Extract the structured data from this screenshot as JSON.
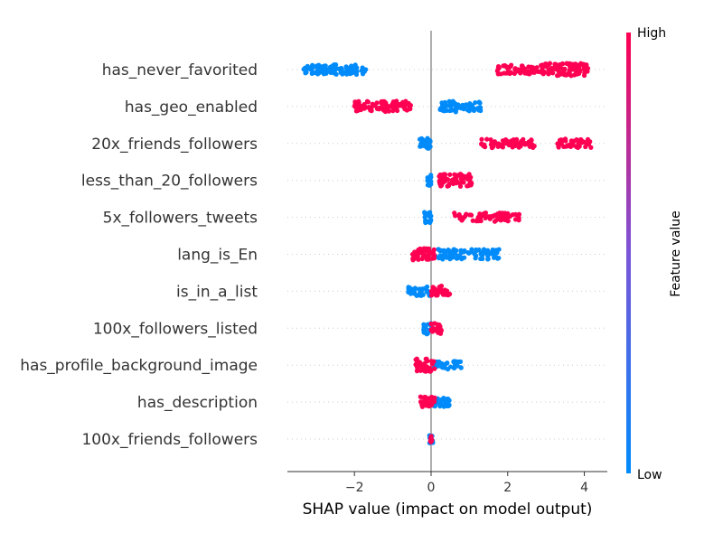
{
  "chart_data": {
    "type": "scatter",
    "subtype": "shap-beeswarm",
    "xlabel": "SHAP value (impact on model output)",
    "xlim": [
      -3.75,
      4.6
    ],
    "xticks": [
      -2,
      0,
      2,
      4
    ],
    "xtick_labels": [
      "−2",
      "0",
      "2",
      "4"
    ],
    "colorbar": {
      "label": "Feature value",
      "high_label": "High",
      "low_label": "Low",
      "high_color": "#ff0052",
      "low_color": "#008bfb"
    },
    "features": [
      {
        "name": "has_never_favorited",
        "low": [
          [
            -3.4,
            -2.7,
            0.6
          ],
          [
            -2.9,
            -1.7,
            0.7
          ]
        ],
        "high": [
          [
            1.7,
            2.9,
            0.6
          ],
          [
            2.9,
            4.1,
            1.0
          ]
        ]
      },
      {
        "name": "has_geo_enabled",
        "low": [
          [
            0.2,
            0.7,
            0.8
          ],
          [
            0.7,
            1.3,
            0.6
          ]
        ],
        "high": [
          [
            -2.0,
            -0.5,
            0.8
          ]
        ]
      },
      {
        "name": "20x_friends_followers",
        "low": [
          [
            -0.3,
            0.0,
            0.8
          ]
        ],
        "high": [
          [
            1.3,
            2.7,
            0.6
          ],
          [
            3.3,
            4.2,
            0.6
          ]
        ]
      },
      {
        "name": "less_than_20_followers",
        "low": [
          [
            -0.1,
            0.0,
            1.0
          ]
        ],
        "high": [
          [
            0.2,
            1.1,
            1.0
          ]
        ]
      },
      {
        "name": "5x_followers_tweets",
        "low": [
          [
            -0.2,
            0.0,
            0.8
          ]
        ],
        "high": [
          [
            0.6,
            2.3,
            0.6
          ]
        ]
      },
      {
        "name": "lang_is_En",
        "low": [
          [
            0.0,
            1.8,
            0.7
          ]
        ],
        "high": [
          [
            -0.5,
            0.1,
            0.9
          ]
        ]
      },
      {
        "name": "is_in_a_list",
        "low": [
          [
            -0.6,
            0.0,
            0.7
          ]
        ],
        "high": [
          [
            0.0,
            0.5,
            0.8
          ]
        ]
      },
      {
        "name": "100x_followers_listed",
        "low": [
          [
            -0.2,
            0.0,
            0.9
          ]
        ],
        "high": [
          [
            0.0,
            0.3,
            0.9
          ]
        ]
      },
      {
        "name": "has_profile_background_image",
        "low": [
          [
            0.0,
            0.8,
            0.5
          ]
        ],
        "high": [
          [
            -0.4,
            0.1,
            1.0
          ]
        ]
      },
      {
        "name": "has_description",
        "low": [
          [
            0.0,
            0.5,
            0.6
          ]
        ],
        "high": [
          [
            -0.3,
            0.1,
            0.8
          ]
        ]
      },
      {
        "name": "100x_friends_followers",
        "low": [
          [
            -0.05,
            0.05,
            0.5
          ]
        ],
        "high": [
          [
            -0.02,
            0.02,
            0.3
          ]
        ]
      }
    ]
  }
}
